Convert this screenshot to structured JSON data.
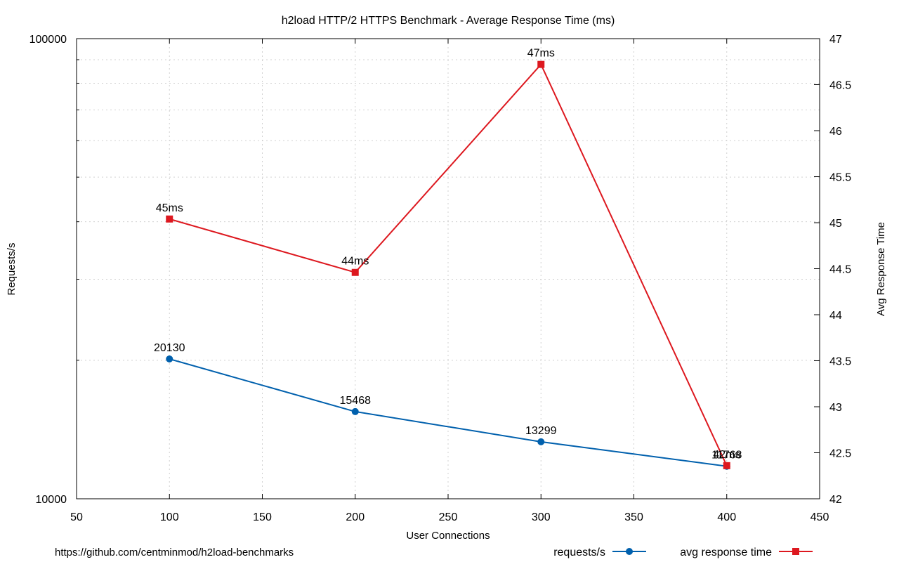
{
  "chart_data": {
    "type": "line",
    "title": "h2load HTTP/2 HTTPS Benchmark - Average Response Time (ms)",
    "xlabel": "User Connections",
    "ylabel": "Requests/s",
    "y2label": "Avg Response Time",
    "xlim": [
      50,
      450
    ],
    "xticks": [
      50,
      100,
      150,
      200,
      250,
      300,
      350,
      400,
      450
    ],
    "ylim": [
      10000,
      100000
    ],
    "yscale": "log",
    "yticks": [
      10000,
      100000
    ],
    "y2lim": [
      42,
      47
    ],
    "y2ticks": [
      42,
      42.5,
      43,
      43.5,
      44,
      44.5,
      45,
      45.5,
      46,
      46.5,
      47
    ],
    "grid": true,
    "legend_position": "bottom-right",
    "x": [
      100,
      200,
      300,
      400
    ],
    "series": [
      {
        "name": "requests/s",
        "axis": "left",
        "color": "#0060ad",
        "marker": "circle",
        "values": [
          20130,
          15468,
          13299,
          11768
        ],
        "labels": [
          "20130",
          "15468",
          "13299",
          "11768"
        ]
      },
      {
        "name": "avg response time",
        "axis": "right",
        "color": "#dd181f",
        "marker": "square",
        "values": [
          45.04,
          44.46,
          46.72,
          42.36
        ],
        "labels": [
          "45ms",
          "44ms",
          "47ms",
          "42ms"
        ]
      }
    ]
  },
  "footer": {
    "source": "https://github.com/centminmod/h2load-benchmarks"
  }
}
